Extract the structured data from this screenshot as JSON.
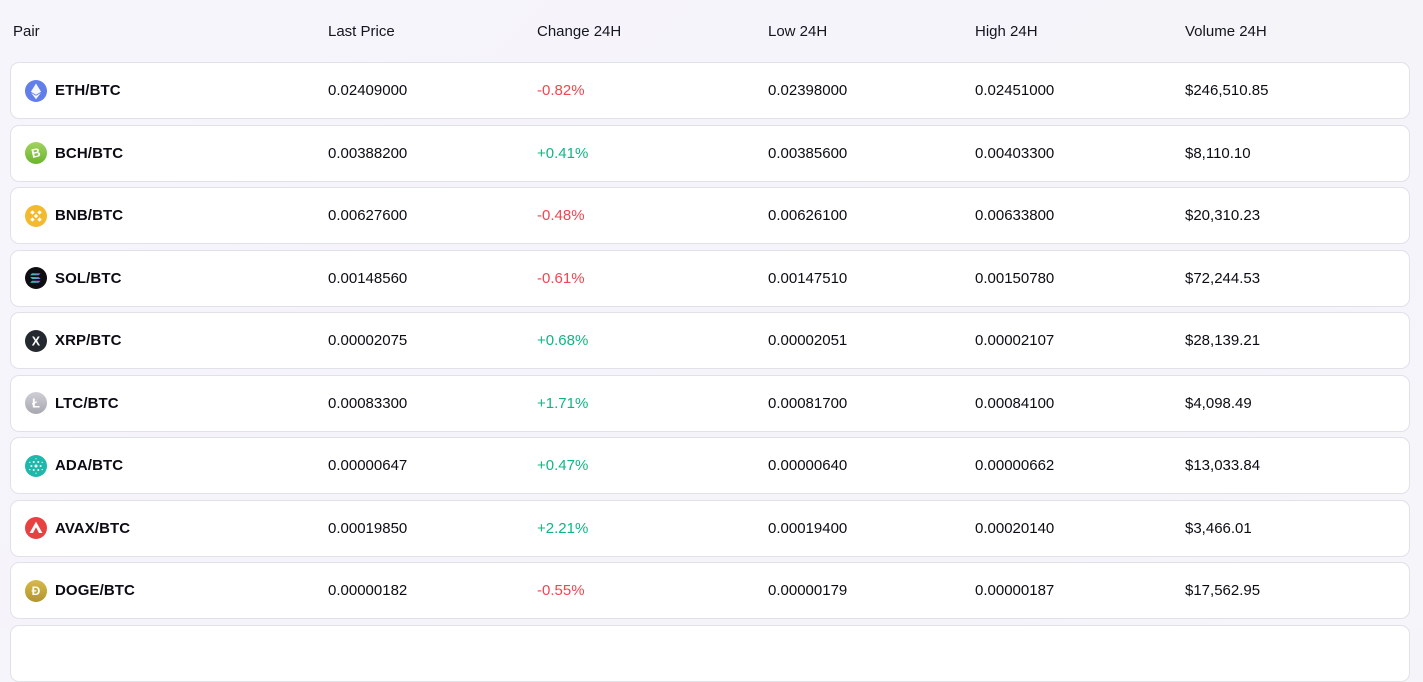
{
  "colors": {
    "positive": "#10b583",
    "negative": "#f5444e",
    "card_background": "#ffffff",
    "card_border": "#e1e1ea",
    "page_background": "#f5f4fa"
  },
  "table": {
    "headers": [
      "Pair",
      "Last Price",
      "Change 24H",
      "Low 24H",
      "High 24H",
      "Volume 24H"
    ],
    "rows": [
      {
        "pair": "ETH/BTC",
        "icon_name": "eth-coin-icon",
        "icon_key": "eth",
        "icon_color": "#627eea",
        "last_price": "0.02409000",
        "change": "-0.82%",
        "trend": "down",
        "low": "0.02398000",
        "high": "0.02451000",
        "volume": "$246,510.85"
      },
      {
        "pair": "BCH/BTC",
        "icon_name": "bch-coin-icon",
        "icon_key": "bch",
        "icon_color": "#8dc351",
        "last_price": "0.00388200",
        "change": "+0.41%",
        "trend": "up",
        "low": "0.00385600",
        "high": "0.00403300",
        "volume": "$8,110.10"
      },
      {
        "pair": "BNB/BTC",
        "icon_name": "bnb-coin-icon",
        "icon_key": "bnb",
        "icon_color": "#f3ba2f",
        "last_price": "0.00627600",
        "change": "-0.48%",
        "trend": "down",
        "low": "0.00626100",
        "high": "0.00633800",
        "volume": "$20,310.23"
      },
      {
        "pair": "SOL/BTC",
        "icon_name": "sol-coin-icon",
        "icon_key": "sol",
        "icon_color": "#0e0e12",
        "last_price": "0.00148560",
        "change": "-0.61%",
        "trend": "down",
        "low": "0.00147510",
        "high": "0.00150780",
        "volume": "$72,244.53"
      },
      {
        "pair": "XRP/BTC",
        "icon_name": "xrp-coin-icon",
        "icon_key": "xrp",
        "icon_color": "#23292f",
        "last_price": "0.00002075",
        "change": "+0.68%",
        "trend": "up",
        "low": "0.00002051",
        "high": "0.00002107",
        "volume": "$28,139.21"
      },
      {
        "pair": "LTC/BTC",
        "icon_name": "ltc-coin-icon",
        "icon_key": "ltc",
        "icon_color": "#b8b8c0",
        "last_price": "0.00083300",
        "change": "+1.71%",
        "trend": "up",
        "low": "0.00081700",
        "high": "0.00084100",
        "volume": "$4,098.49"
      },
      {
        "pair": "ADA/BTC",
        "icon_name": "ada-coin-icon",
        "icon_key": "ada",
        "icon_color": "#1cb8ab",
        "last_price": "0.00000647",
        "change": "+0.47%",
        "trend": "up",
        "low": "0.00000640",
        "high": "0.00000662",
        "volume": "$13,033.84"
      },
      {
        "pair": "AVAX/BTC",
        "icon_name": "avax-coin-icon",
        "icon_key": "avax",
        "icon_color": "#e84142",
        "last_price": "0.00019850",
        "change": "+2.21%",
        "trend": "up",
        "low": "0.00019400",
        "high": "0.00020140",
        "volume": "$3,466.01"
      },
      {
        "pair": "DOGE/BTC",
        "icon_name": "doge-coin-icon",
        "icon_key": "doge",
        "icon_color": "#c9a636",
        "last_price": "0.00000182",
        "change": "-0.55%",
        "trend": "down",
        "low": "0.00000179",
        "high": "0.00000187",
        "volume": "$17,562.95"
      }
    ]
  }
}
